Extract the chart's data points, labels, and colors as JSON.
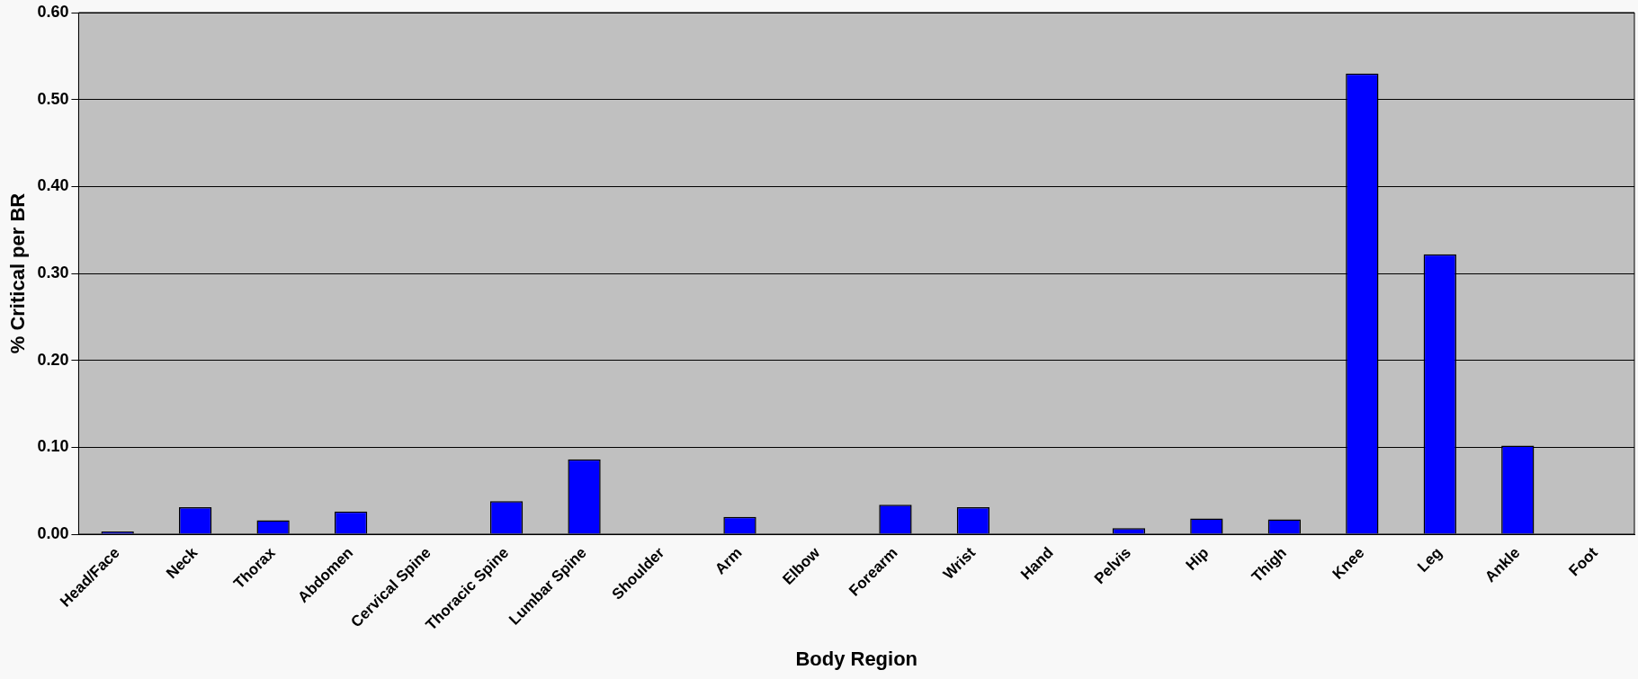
{
  "chart_data": {
    "type": "bar",
    "xlabel": "Body Region",
    "ylabel": "% Critical per BR",
    "categories": [
      "Head/Face",
      "Neck",
      "Thorax",
      "Abdomen",
      "Cervical Spine",
      "Thoracic Spine",
      "Lumbar Spine",
      "Shoulder",
      "Arm",
      "Elbow",
      "Forearm",
      "Wrist",
      "Hand",
      "Pelvis",
      "Hip",
      "Thigh",
      "Knee",
      "Leg",
      "Ankle",
      "Foot"
    ],
    "values": [
      0.003,
      0.031,
      0.016,
      0.026,
      0,
      0.038,
      0.086,
      0,
      0.02,
      0,
      0.034,
      0.031,
      0,
      0.007,
      0.018,
      0.017,
      0.53,
      0.322,
      0.102,
      0
    ],
    "color": "#0000ff",
    "ylim": [
      0,
      0.6
    ],
    "yticks": [
      {
        "value": 0,
        "label": "0.00"
      },
      {
        "value": 0.1,
        "label": "0.10"
      },
      {
        "value": 0.2,
        "label": "0.20"
      },
      {
        "value": 0.3,
        "label": "0.30"
      },
      {
        "value": 0.4,
        "label": "0.40"
      },
      {
        "value": 0.5,
        "label": "0.50"
      },
      {
        "value": 0.6,
        "label": "0.60"
      }
    ],
    "grid": "y",
    "legend": false
  }
}
